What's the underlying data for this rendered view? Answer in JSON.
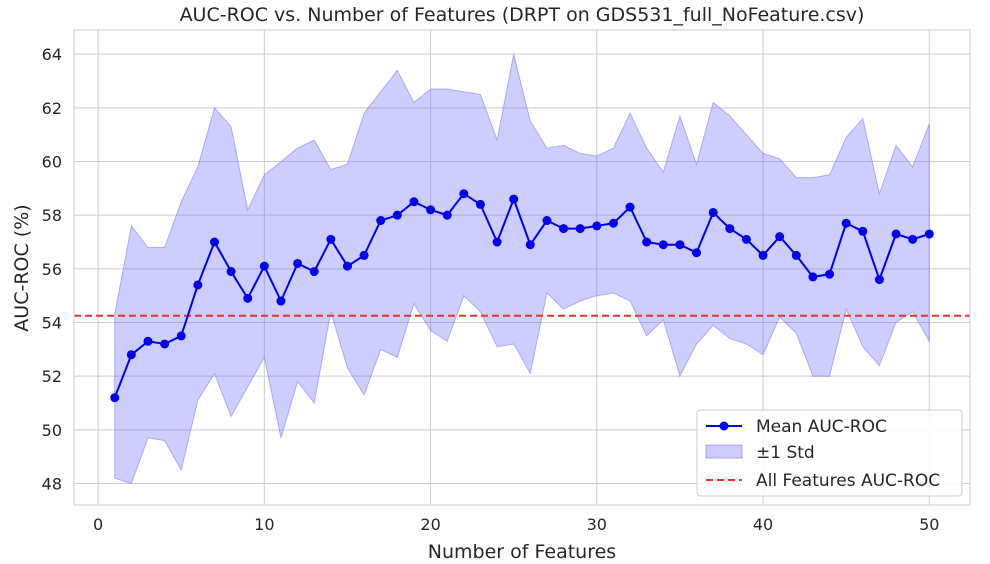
{
  "chart_data": {
    "type": "line",
    "title": "AUC-ROC vs. Number of Features (DRPT on GDS531_full_NoFeature.csv)",
    "xlabel": "Number of Features",
    "ylabel": "AUC-ROC (%)",
    "xlim": [
      -1.45,
      52.45
    ],
    "ylim": [
      47.2,
      64.9
    ],
    "xticks": [
      0,
      10,
      20,
      30,
      40,
      50
    ],
    "yticks": [
      48,
      50,
      52,
      54,
      56,
      58,
      60,
      62,
      64
    ],
    "grid": true,
    "legend_position": "lower-right",
    "x": [
      1,
      2,
      3,
      4,
      5,
      6,
      7,
      8,
      9,
      10,
      11,
      12,
      13,
      14,
      15,
      16,
      17,
      18,
      19,
      20,
      21,
      22,
      23,
      24,
      25,
      26,
      27,
      28,
      29,
      30,
      31,
      32,
      33,
      34,
      35,
      36,
      37,
      38,
      39,
      40,
      41,
      42,
      43,
      44,
      45,
      46,
      47,
      48,
      49,
      50
    ],
    "series": [
      {
        "name": "Mean AUC-ROC",
        "color": "#0000ee",
        "values": [
          51.2,
          52.8,
          53.3,
          53.2,
          53.5,
          55.4,
          57.0,
          55.9,
          54.9,
          56.1,
          54.8,
          56.2,
          55.9,
          57.1,
          56.1,
          56.5,
          57.8,
          58.0,
          58.5,
          58.2,
          58.0,
          58.8,
          58.4,
          57.0,
          58.6,
          56.9,
          57.8,
          57.5,
          57.5,
          57.6,
          57.7,
          58.3,
          57.0,
          56.9,
          56.9,
          56.6,
          58.1,
          57.5,
          57.1,
          56.5,
          57.2,
          56.5,
          55.7,
          55.8,
          57.7,
          57.4,
          55.6,
          57.3,
          57.1,
          57.3
        ]
      },
      {
        "name": "±1 Std",
        "color": "#6666ff",
        "upper": [
          54.3,
          57.6,
          56.8,
          56.8,
          58.5,
          59.8,
          62.0,
          61.3,
          58.2,
          59.5,
          60.0,
          60.5,
          60.8,
          59.7,
          59.9,
          61.8,
          62.6,
          63.4,
          62.2,
          62.7,
          62.7,
          62.6,
          62.5,
          60.8,
          64.0,
          61.5,
          60.5,
          60.6,
          60.3,
          60.2,
          60.5,
          61.8,
          60.5,
          59.6,
          61.7,
          59.9,
          62.2,
          61.7,
          61.0,
          60.3,
          60.1,
          59.4,
          59.4,
          59.5,
          60.9,
          61.6,
          58.8,
          60.6,
          59.8,
          61.4
        ],
        "lower": [
          48.2,
          48.0,
          49.7,
          49.6,
          48.5,
          51.1,
          52.1,
          50.5,
          51.6,
          52.7,
          49.7,
          51.8,
          51.0,
          54.4,
          52.3,
          51.3,
          53.0,
          52.7,
          54.7,
          53.7,
          53.3,
          55.0,
          54.4,
          53.1,
          53.2,
          52.1,
          55.1,
          54.5,
          54.8,
          55.0,
          55.1,
          54.8,
          53.5,
          54.1,
          52.0,
          53.2,
          53.9,
          53.4,
          53.2,
          52.8,
          54.2,
          53.6,
          52.0,
          52.0,
          54.5,
          53.1,
          52.4,
          54.0,
          54.4,
          53.3
        ]
      }
    ],
    "reference_line": {
      "name": "All Features AUC-ROC",
      "value": 54.25,
      "color": "#e8322e",
      "style": "dashed"
    }
  }
}
